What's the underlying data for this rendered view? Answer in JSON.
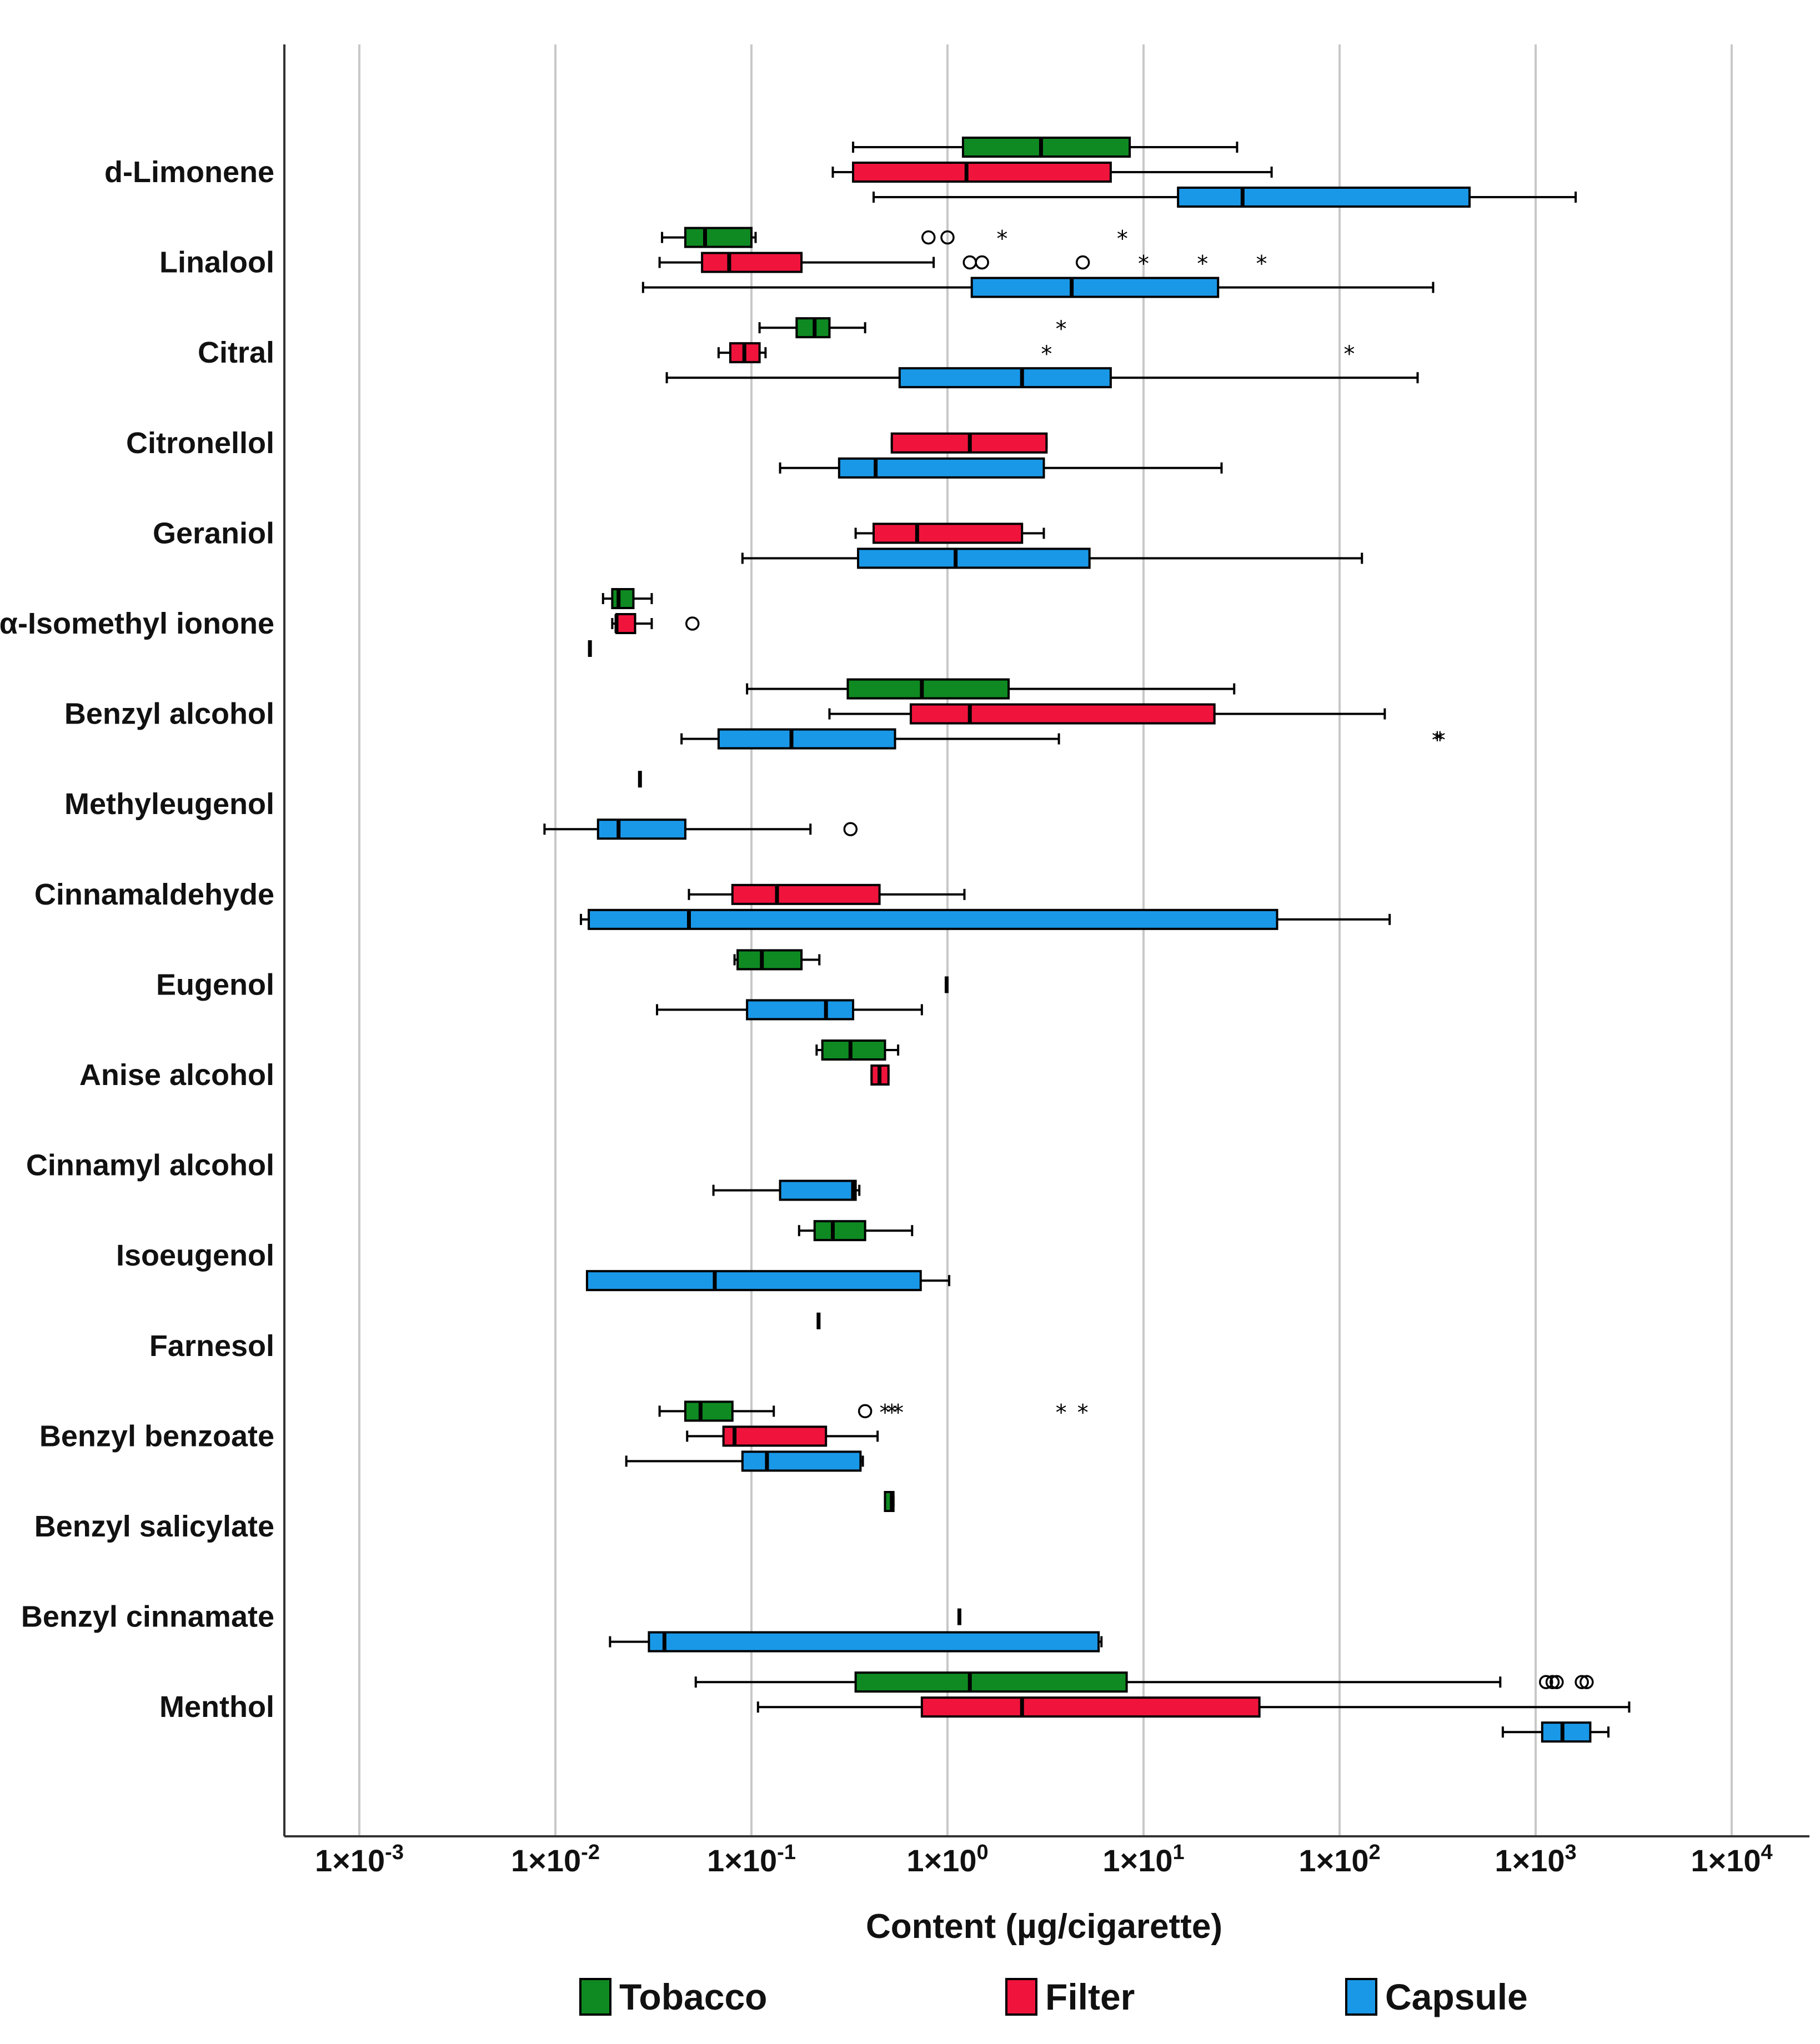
{
  "chart_data": {
    "type": "boxplot",
    "orientation": "horizontal",
    "xscale": "log10",
    "xlim": [
      0.0005,
      30000
    ],
    "xlabel": "Content (µg/cigarette)",
    "ticks": [
      {
        "value": 0.001,
        "label": "1×10",
        "exp": "-3"
      },
      {
        "value": 0.01,
        "label": "1×10",
        "exp": "-2"
      },
      {
        "value": 0.1,
        "label": "1×10",
        "exp": "-1"
      },
      {
        "value": 1,
        "label": "1×10",
        "exp": "0"
      },
      {
        "value": 10,
        "label": "1×10",
        "exp": "1"
      },
      {
        "value": 100,
        "label": "1×10",
        "exp": "2"
      },
      {
        "value": 1000,
        "label": "1×10",
        "exp": "3"
      },
      {
        "value": 10000,
        "label": "1×10",
        "exp": "4"
      }
    ],
    "grid": true,
    "legend": {
      "position": "bottom",
      "entries": [
        {
          "name": "Tobacco",
          "color": "#0f8a22"
        },
        {
          "name": "Filter",
          "color": "#f0143c"
        },
        {
          "name": "Capsule",
          "color": "#1a98e8"
        }
      ]
    },
    "colors": {
      "Tobacco": "#0f8a22",
      "Filter": "#f0143c",
      "Capsule": "#1a98e8"
    },
    "categories": [
      {
        "name": "d-Limonene",
        "boxes": [
          {
            "series": "Tobacco",
            "min": 0.33,
            "q1": 1.2,
            "median": 3.0,
            "q3": 8.5,
            "max": 30
          },
          {
            "series": "Filter",
            "min": 0.26,
            "q1": 0.33,
            "median": 1.25,
            "q3": 6.8,
            "max": 45
          },
          {
            "series": "Capsule",
            "min": 0.42,
            "q1": 15,
            "median": 32,
            "q3": 460,
            "max": 1600
          }
        ]
      },
      {
        "name": "Linalool",
        "boxes": [
          {
            "series": "Tobacco",
            "min": 0.035,
            "q1": 0.046,
            "median": 0.058,
            "q3": 0.1,
            "max": 0.105,
            "outliers": [
              {
                "v": 0.8,
                "m": "o"
              },
              {
                "v": 1.0,
                "m": "o"
              },
              {
                "v": 1.9,
                "m": "*"
              },
              {
                "v": 7.8,
                "m": "*"
              }
            ]
          },
          {
            "series": "Filter",
            "min": 0.034,
            "q1": 0.056,
            "median": 0.077,
            "q3": 0.18,
            "max": 0.85,
            "outliers": [
              {
                "v": 1.3,
                "m": "o"
              },
              {
                "v": 1.5,
                "m": "o"
              },
              {
                "v": 4.9,
                "m": "o"
              },
              {
                "v": 10,
                "m": "*"
              },
              {
                "v": 20,
                "m": "*"
              },
              {
                "v": 40,
                "m": "*"
              }
            ]
          },
          {
            "series": "Capsule",
            "min": 0.028,
            "q1": 1.33,
            "median": 4.3,
            "q3": 24,
            "max": 300
          }
        ]
      },
      {
        "name": "Citral",
        "boxes": [
          {
            "series": "Tobacco",
            "min": 0.11,
            "q1": 0.17,
            "median": 0.21,
            "q3": 0.25,
            "max": 0.38,
            "outliers": [
              {
                "v": 3.8,
                "m": "*"
              }
            ]
          },
          {
            "series": "Filter",
            "min": 0.068,
            "q1": 0.078,
            "median": 0.092,
            "q3": 0.11,
            "max": 0.118,
            "outliers": [
              {
                "v": 3.2,
                "m": "*"
              },
              {
                "v": 112,
                "m": "*"
              }
            ]
          },
          {
            "series": "Capsule",
            "min": 0.037,
            "q1": 0.57,
            "median": 2.4,
            "q3": 6.8,
            "max": 250
          }
        ]
      },
      {
        "name": "Citronellol",
        "boxes": [
          {
            "series": "Filter",
            "min": 0.52,
            "q1": 0.52,
            "median": 1.3,
            "q3": 3.2,
            "max": 3.2
          },
          {
            "series": "Capsule",
            "min": 0.14,
            "q1": 0.28,
            "median": 0.43,
            "q3": 3.1,
            "max": 25
          }
        ]
      },
      {
        "name": "Geraniol",
        "boxes": [
          {
            "series": "Filter",
            "min": 0.34,
            "q1": 0.42,
            "median": 0.7,
            "q3": 2.4,
            "max": 3.1
          },
          {
            "series": "Capsule",
            "min": 0.09,
            "q1": 0.35,
            "median": 1.1,
            "q3": 5.3,
            "max": 130
          }
        ]
      },
      {
        "name": "α-Isomethyl ionone",
        "boxes": [
          {
            "series": "Tobacco",
            "min": 0.0175,
            "q1": 0.0195,
            "median": 0.021,
            "q3": 0.025,
            "max": 0.031
          },
          {
            "series": "Filter",
            "min": 0.0195,
            "q1": 0.0205,
            "median": 0.0205,
            "q3": 0.0255,
            "max": 0.031,
            "outliers": [
              {
                "v": 0.05,
                "m": "o"
              }
            ]
          },
          {
            "series": "Capsule",
            "min": 0.015,
            "q1": 0.015,
            "median": 0.015,
            "q3": 0.015,
            "max": 0.015
          }
        ]
      },
      {
        "name": "Benzyl alcohol",
        "boxes": [
          {
            "series": "Tobacco",
            "min": 0.095,
            "q1": 0.31,
            "median": 0.74,
            "q3": 2.05,
            "max": 29
          },
          {
            "series": "Filter",
            "min": 0.25,
            "q1": 0.65,
            "median": 1.3,
            "q3": 23,
            "max": 170
          },
          {
            "series": "Capsule",
            "min": 0.044,
            "q1": 0.068,
            "median": 0.16,
            "q3": 0.54,
            "max": 3.7,
            "outliers": [
              {
                "v": 315,
                "m": "*"
              },
              {
                "v": 325,
                "m": "*"
              }
            ]
          }
        ]
      },
      {
        "name": "Methyleugenol",
        "boxes": [
          {
            "series": "Tobacco",
            "min": 0.027,
            "q1": 0.027,
            "median": 0.027,
            "q3": 0.027,
            "max": 0.027
          },
          {
            "series": "Capsule",
            "min": 0.0088,
            "q1": 0.0165,
            "median": 0.021,
            "q3": 0.046,
            "max": 0.2,
            "outliers": [
              {
                "v": 0.32,
                "m": "o"
              }
            ]
          }
        ]
      },
      {
        "name": "Cinnamaldehyde",
        "boxes": [
          {
            "series": "Filter",
            "min": 0.048,
            "q1": 0.08,
            "median": 0.135,
            "q3": 0.45,
            "max": 1.22
          },
          {
            "series": "Capsule",
            "min": 0.0135,
            "q1": 0.0148,
            "median": 0.048,
            "q3": 48,
            "max": 180
          }
        ]
      },
      {
        "name": "Eugenol",
        "boxes": [
          {
            "series": "Tobacco",
            "min": 0.082,
            "q1": 0.085,
            "median": 0.113,
            "q3": 0.18,
            "max": 0.222
          },
          {
            "series": "Filter",
            "min": 0.99,
            "q1": 0.99,
            "median": 0.99,
            "q3": 0.99,
            "max": 0.99
          },
          {
            "series": "Capsule",
            "min": 0.033,
            "q1": 0.095,
            "median": 0.24,
            "q3": 0.33,
            "max": 0.74
          }
        ]
      },
      {
        "name": "Anise alcohol",
        "boxes": [
          {
            "series": "Tobacco",
            "min": 0.215,
            "q1": 0.23,
            "median": 0.32,
            "q3": 0.48,
            "max": 0.56
          },
          {
            "series": "Filter",
            "min": 0.41,
            "q1": 0.41,
            "median": 0.45,
            "q3": 0.5,
            "max": 0.5
          }
        ]
      },
      {
        "name": "Cinnamyl alcohol",
        "boxes": [
          {
            "series": "Capsule",
            "min": 0.064,
            "q1": 0.14,
            "median": 0.33,
            "q3": 0.34,
            "max": 0.355
          }
        ]
      },
      {
        "name": "Isoeugenol",
        "boxes": [
          {
            "series": "Tobacco",
            "min": 0.175,
            "q1": 0.21,
            "median": 0.26,
            "q3": 0.38,
            "max": 0.66
          },
          {
            "series": "Capsule",
            "min": 0.0145,
            "q1": 0.0145,
            "median": 0.065,
            "q3": 0.73,
            "max": 1.02
          }
        ]
      },
      {
        "name": "Farnesol",
        "boxes": [
          {
            "series": "Tobacco",
            "min": 0.22,
            "q1": 0.22,
            "median": 0.22,
            "q3": 0.22,
            "max": 0.22
          }
        ]
      },
      {
        "name": "Benzyl benzoate",
        "boxes": [
          {
            "series": "Tobacco",
            "min": 0.034,
            "q1": 0.046,
            "median": 0.055,
            "q3": 0.08,
            "max": 0.13,
            "outliers": [
              {
                "v": 0.38,
                "m": "o"
              },
              {
                "v": 0.48,
                "m": "*"
              },
              {
                "v": 0.52,
                "m": "*"
              },
              {
                "v": 0.56,
                "m": "*"
              },
              {
                "v": 3.8,
                "m": "*"
              },
              {
                "v": 4.9,
                "m": "*"
              }
            ]
          },
          {
            "series": "Filter",
            "min": 0.047,
            "q1": 0.072,
            "median": 0.082,
            "q3": 0.24,
            "max": 0.44
          },
          {
            "series": "Capsule",
            "min": 0.023,
            "q1": 0.09,
            "median": 0.12,
            "q3": 0.36,
            "max": 0.37
          }
        ]
      },
      {
        "name": "Benzyl salicylate",
        "boxes": [
          {
            "series": "Tobacco",
            "min": 0.48,
            "q1": 0.48,
            "median": 0.52,
            "q3": 0.53,
            "max": 0.53
          }
        ]
      },
      {
        "name": "Benzyl cinnamate",
        "boxes": [
          {
            "series": "Filter",
            "min": 1.15,
            "q1": 1.15,
            "median": 1.15,
            "q3": 1.15,
            "max": 1.15
          },
          {
            "series": "Capsule",
            "min": 0.019,
            "q1": 0.03,
            "median": 0.036,
            "q3": 5.9,
            "max": 6.1
          }
        ]
      },
      {
        "name": "Menthol",
        "boxes": [
          {
            "series": "Tobacco",
            "min": 0.052,
            "q1": 0.34,
            "median": 1.3,
            "q3": 8.2,
            "max": 660,
            "outliers": [
              {
                "v": 1130,
                "m": "o"
              },
              {
                "v": 1220,
                "m": "o"
              },
              {
                "v": 1280,
                "m": "o"
              },
              {
                "v": 1720,
                "m": "o"
              },
              {
                "v": 1820,
                "m": "o"
              }
            ]
          },
          {
            "series": "Filter",
            "min": 0.108,
            "q1": 0.74,
            "median": 2.4,
            "q3": 39,
            "max": 3000
          },
          {
            "series": "Capsule",
            "min": 680,
            "q1": 1080,
            "median": 1370,
            "q3": 1900,
            "max": 2350
          }
        ]
      }
    ]
  }
}
